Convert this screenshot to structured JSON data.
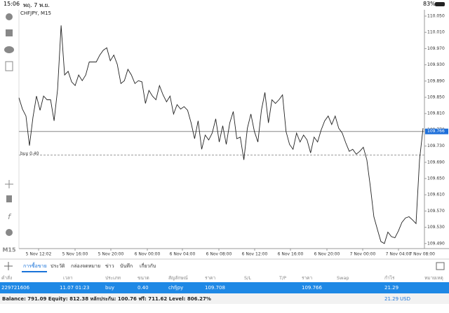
{
  "status_bar": {
    "time": "15:06",
    "date": "พฤ. 7 พ.ย.",
    "battery": "83%"
  },
  "sidebar": {
    "timeframe": "M15"
  },
  "chart_data": {
    "type": "line",
    "title": "CHFJPY, M15",
    "color": "#222222",
    "values": [
      109.849,
      109.821,
      109.804,
      109.731,
      109.801,
      109.853,
      109.818,
      109.853,
      109.844,
      109.844,
      109.792,
      109.87,
      110.027,
      109.905,
      109.914,
      109.888,
      109.879,
      109.905,
      109.891,
      109.905,
      109.937,
      109.937,
      109.937,
      109.954,
      109.966,
      109.972,
      109.94,
      109.954,
      109.931,
      109.884,
      109.891,
      109.919,
      109.905,
      109.884,
      109.891,
      109.888,
      109.835,
      109.867,
      109.853,
      109.844,
      109.879,
      109.856,
      109.839,
      109.853,
      109.809,
      109.832,
      109.821,
      109.827,
      109.818,
      109.787,
      109.748,
      109.792,
      109.722,
      109.757,
      109.745,
      109.762,
      109.797,
      109.74,
      109.78,
      109.734,
      109.787,
      109.815,
      109.748,
      109.752,
      109.696,
      109.774,
      109.809,
      109.766,
      109.74,
      109.818,
      109.862,
      109.787,
      109.844,
      109.835,
      109.844,
      109.856,
      109.766,
      109.734,
      109.722,
      109.762,
      109.74,
      109.757,
      109.745,
      109.713,
      109.752,
      109.74,
      109.769,
      109.792,
      109.804,
      109.783,
      109.804,
      109.774,
      109.762,
      109.738,
      109.717,
      109.722,
      109.71,
      109.717,
      109.727,
      109.696,
      109.63,
      109.556,
      109.525,
      109.495,
      109.49,
      109.518,
      109.507,
      109.504,
      109.521,
      109.542,
      109.553,
      109.556,
      109.548,
      109.539,
      109.696,
      109.774
    ],
    "ylim": [
      109.4775,
      110.0655
    ],
    "yticks": [
      {
        "value": 110.05,
        "label": "110.050"
      },
      {
        "value": 110.01,
        "label": "110.010"
      },
      {
        "value": 109.97,
        "label": "109.970"
      },
      {
        "value": 109.93,
        "label": "109.930"
      },
      {
        "value": 109.89,
        "label": "109.890"
      },
      {
        "value": 109.85,
        "label": "109.850"
      },
      {
        "value": 109.81,
        "label": "109.810"
      },
      {
        "value": 109.77,
        "label": "109.770"
      },
      {
        "value": 109.73,
        "label": "109.730"
      },
      {
        "value": 109.69,
        "label": "109.690"
      },
      {
        "value": 109.65,
        "label": "109.650"
      },
      {
        "value": 109.61,
        "label": "109.610"
      },
      {
        "value": 109.57,
        "label": "109.570"
      },
      {
        "value": 109.53,
        "label": "109.530"
      },
      {
        "value": 109.49,
        "label": "109.490"
      }
    ],
    "xlim": [
      0,
      115.6
    ],
    "xticks": [
      {
        "value": 5.6,
        "label": "5 Nov 12:02"
      },
      {
        "value": 16,
        "label": "5 Nov 16:00"
      },
      {
        "value": 26.2,
        "label": "5 Nov 20:00"
      },
      {
        "value": 36.6,
        "label": "6 Nov 00:00"
      },
      {
        "value": 46.6,
        "label": "6 Nov 04:00"
      },
      {
        "value": 57,
        "label": "6 Nov 08:00"
      },
      {
        "value": 67.2,
        "label": "6 Nov 12:00"
      },
      {
        "value": 77.4,
        "label": "6 Nov 16:00"
      },
      {
        "value": 87.8,
        "label": "6 Nov 20:00"
      },
      {
        "value": 98,
        "label": "7 Nov 00:00"
      },
      {
        "value": 108.2,
        "label": "7 Nov 04:00"
      },
      {
        "value": 118.6,
        "label": "7 Nov 08:00"
      }
    ],
    "bid": 109.766,
    "order_line": {
      "label": "buy 0.40",
      "value": 109.708
    }
  },
  "tabs": [
    "การซื้อขาย",
    "ประวัติ",
    "กล่องจดหมาย",
    "ข่าว",
    "บันทึก",
    "เกี่ยวกับ"
  ],
  "table": {
    "columns": [
      "คำสั่ง",
      "เวลา",
      "ประเภท",
      "ขนาด",
      "สัญลักษณ์",
      "ราคา",
      "S/L",
      "T/P",
      "ราคา",
      "Swap",
      "กำไร",
      "หมายเหตุ"
    ],
    "rows": [
      [
        "229721606",
        "11.07 01:23",
        "buy",
        "0.40",
        "chfjpy",
        "109.708",
        "",
        "",
        "109.766",
        "",
        "21.29",
        ""
      ]
    ]
  },
  "balance_bar": {
    "summary": "Balance: 791.09 Equity: 812.38 หลักประกัน: 100.76 ฟรี: 711.62 Level: 806.27%",
    "profit": "21.29",
    "currency": "USD"
  }
}
